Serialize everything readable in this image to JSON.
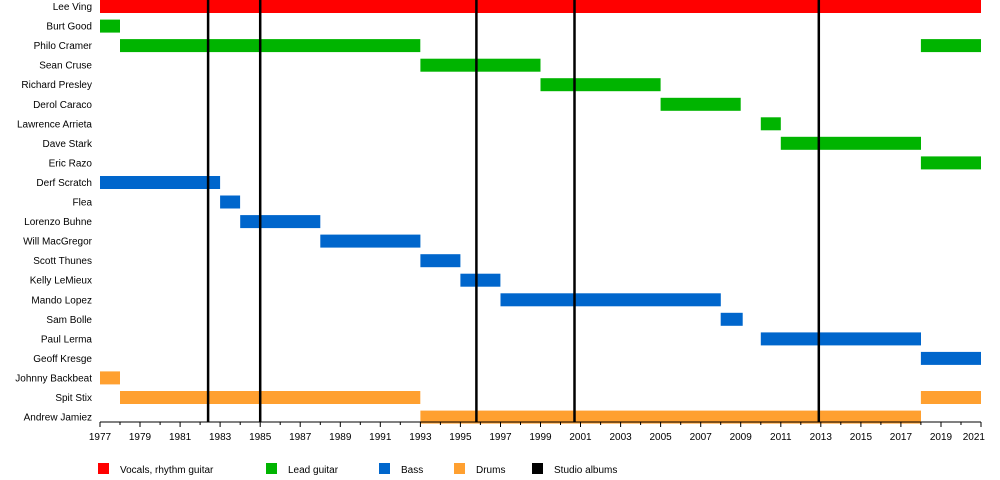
{
  "chart_data": {
    "type": "timeline",
    "x_range": [
      1977,
      2021
    ],
    "x_ticks": [
      "1977",
      "1979",
      "1981",
      "1983",
      "1985",
      "1987",
      "1989",
      "1991",
      "1993",
      "1995",
      "1997",
      "1999",
      "2001",
      "2003",
      "2005",
      "2007",
      "2009",
      "2011",
      "2013",
      "2015",
      "2017",
      "2019",
      "2021"
    ],
    "members": [
      {
        "name": "Lee Ving",
        "role": "vocals",
        "periods": [
          [
            1977,
            2021
          ]
        ]
      },
      {
        "name": "Burt Good",
        "role": "lead",
        "periods": [
          [
            1977,
            1978
          ]
        ]
      },
      {
        "name": "Philo Cramer",
        "role": "lead",
        "periods": [
          [
            1978,
            1993
          ],
          [
            2018,
            2021
          ]
        ]
      },
      {
        "name": "Sean Cruse",
        "role": "lead",
        "periods": [
          [
            1993,
            1999
          ]
        ]
      },
      {
        "name": "Richard Presley",
        "role": "lead",
        "periods": [
          [
            1999,
            2005
          ]
        ]
      },
      {
        "name": "Derol Caraco",
        "role": "lead",
        "periods": [
          [
            2005,
            2009
          ]
        ]
      },
      {
        "name": "Lawrence Arrieta",
        "role": "lead",
        "periods": [
          [
            2010,
            2011
          ]
        ]
      },
      {
        "name": "Dave Stark",
        "role": "lead",
        "periods": [
          [
            2011,
            2018
          ]
        ]
      },
      {
        "name": "Eric Razo",
        "role": "lead",
        "periods": [
          [
            2018,
            2021
          ]
        ]
      },
      {
        "name": "Derf Scratch",
        "role": "bass",
        "periods": [
          [
            1977,
            1983
          ]
        ]
      },
      {
        "name": "Flea",
        "role": "bass",
        "periods": [
          [
            1983,
            1984
          ]
        ]
      },
      {
        "name": "Lorenzo Buhne",
        "role": "bass",
        "periods": [
          [
            1984,
            1988
          ]
        ]
      },
      {
        "name": "Will MacGregor",
        "role": "bass",
        "periods": [
          [
            1988,
            1993
          ]
        ]
      },
      {
        "name": "Scott Thunes",
        "role": "bass",
        "periods": [
          [
            1993,
            1995
          ]
        ]
      },
      {
        "name": "Kelly LeMieux",
        "role": "bass",
        "periods": [
          [
            1995,
            1997
          ]
        ]
      },
      {
        "name": "Mando Lopez",
        "role": "bass",
        "periods": [
          [
            1997,
            2008
          ]
        ]
      },
      {
        "name": "Sam Bolle",
        "role": "bass",
        "periods": [
          [
            2008,
            2009.1
          ]
        ]
      },
      {
        "name": "Paul Lerma",
        "role": "bass",
        "periods": [
          [
            2010,
            2018
          ]
        ]
      },
      {
        "name": "Geoff Kresge",
        "role": "bass",
        "periods": [
          [
            2018,
            2021
          ]
        ]
      },
      {
        "name": "Johnny Backbeat",
        "role": "drums",
        "periods": [
          [
            1977,
            1978
          ]
        ]
      },
      {
        "name": "Spit Stix",
        "role": "drums",
        "periods": [
          [
            1978,
            1993
          ],
          [
            2018,
            2021
          ]
        ]
      },
      {
        "name": "Andrew Jamiez",
        "role": "drums",
        "periods": [
          [
            1993,
            2018
          ]
        ]
      }
    ],
    "studio_albums": [
      1982.4,
      1985,
      1995.8,
      2000.7,
      2012.9
    ],
    "legend": [
      {
        "key": "vocals",
        "label": "Vocals, rhythm guitar",
        "color": "#ff0000"
      },
      {
        "key": "lead",
        "label": "Lead guitar",
        "color": "#00b400"
      },
      {
        "key": "bass",
        "label": "Bass",
        "color": "#0066cc"
      },
      {
        "key": "drums",
        "label": "Drums",
        "color": "#ffa030"
      },
      {
        "key": "albums",
        "label": "Studio albums",
        "color": "#000000"
      }
    ]
  }
}
